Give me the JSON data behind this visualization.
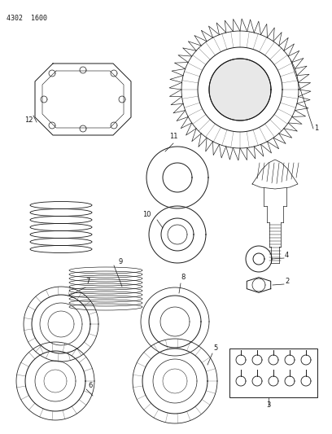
{
  "header_text": "4302  1600",
  "bg_color": "#ffffff",
  "line_color": "#1a1a1a",
  "fig_width": 4.08,
  "fig_height": 5.33,
  "dpi": 100
}
